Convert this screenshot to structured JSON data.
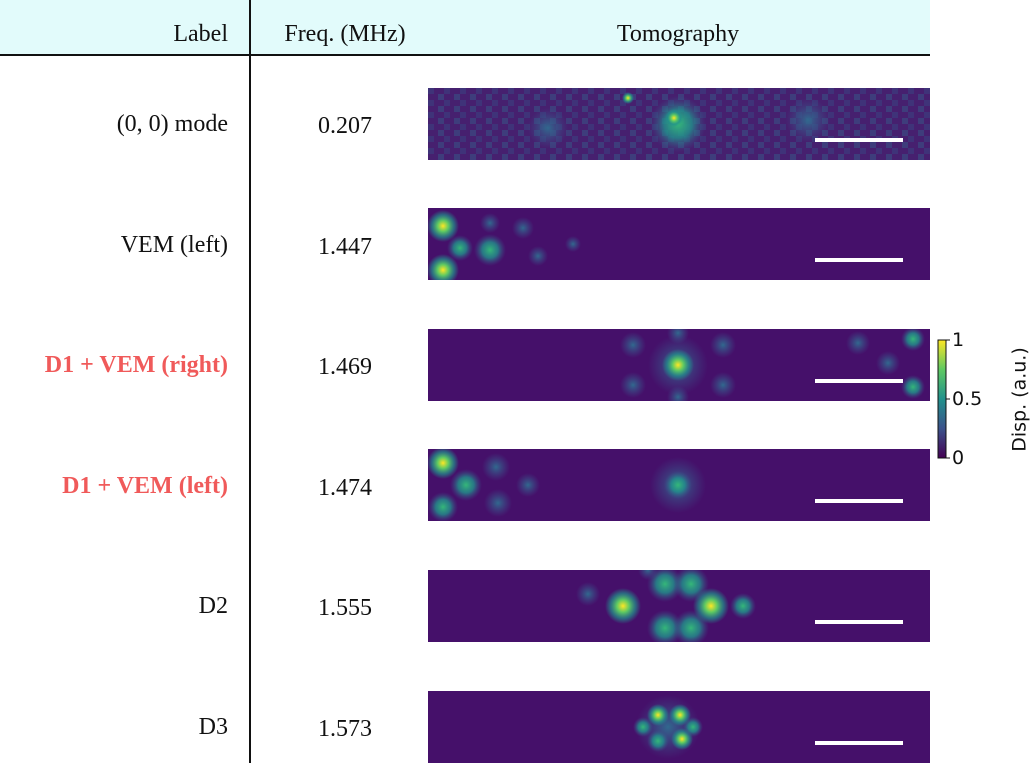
{
  "table": {
    "header": [
      "Label",
      "Freq. (MHz)",
      "Tomography"
    ],
    "rows": [
      [
        "(0, 0) mode",
        "0.207"
      ],
      [
        "VEM (left)",
        "1.447"
      ],
      [
        "D1 + VEM (right)",
        "1.469"
      ],
      [
        "D1 + VEM (left)",
        "1.474"
      ],
      [
        "D2",
        "1.555"
      ],
      [
        "D3",
        "1.573"
      ]
    ]
  },
  "colorbar": {
    "label": "Disp. (a.u.)",
    "ticks": [
      "1",
      "0.5",
      "0"
    ]
  }
}
